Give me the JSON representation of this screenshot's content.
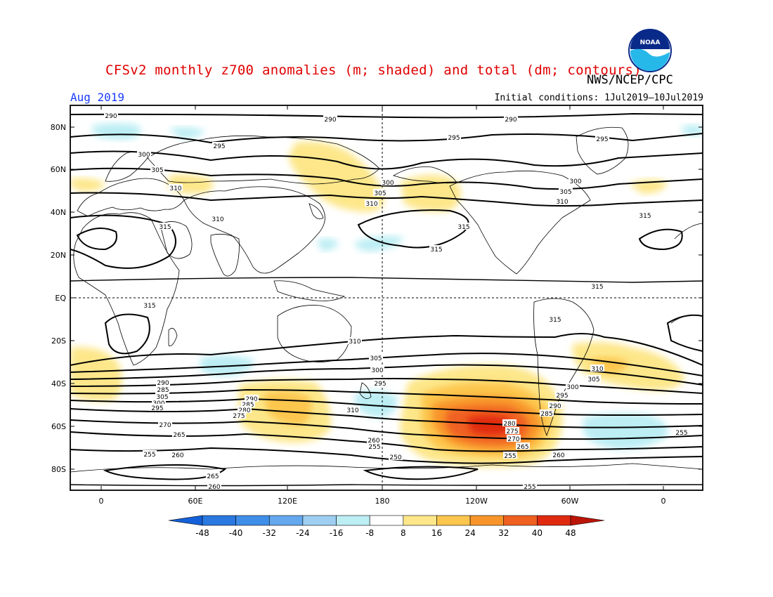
{
  "header": {
    "title": "CFSv2 monthly z700 anomalies (m; shaded) and total (dm; contours)",
    "org": "NWS/NCEP/CPC",
    "month": "Aug 2019",
    "initial_conditions": "Initial conditions: 1Jul2019–10Jul2019",
    "logo_text": "NOAA"
  },
  "axes": {
    "lat_labels": [
      "80N",
      "60N",
      "40N",
      "20N",
      "EQ",
      "20S",
      "40S",
      "60S",
      "80S"
    ],
    "lon_labels": [
      "0",
      "60E",
      "120E",
      "180",
      "120W",
      "60W",
      "0"
    ]
  },
  "colorbar": {
    "labels": [
      "-48",
      "-40",
      "-32",
      "-24",
      "-16",
      "-8",
      "8",
      "16",
      "24",
      "32",
      "40",
      "48"
    ],
    "colors": [
      "#1460d8",
      "#2a78e0",
      "#3f8ee8",
      "#64a8ee",
      "#9ecff2",
      "#bceef4",
      "#ffffff",
      "#fde78a",
      "#fdc64e",
      "#f8952a",
      "#f06020",
      "#e02a10",
      "#bb1408"
    ]
  },
  "contour_labels": [
    {
      "text": "290"
    },
    {
      "text": "290"
    },
    {
      "text": "290"
    },
    {
      "text": "295"
    },
    {
      "text": "295"
    },
    {
      "text": "295"
    },
    {
      "text": "300"
    },
    {
      "text": "305"
    },
    {
      "text": "310"
    },
    {
      "text": "310"
    },
    {
      "text": "300"
    },
    {
      "text": "305"
    },
    {
      "text": "310"
    },
    {
      "text": "300"
    },
    {
      "text": "305"
    },
    {
      "text": "310"
    },
    {
      "text": "315"
    },
    {
      "text": "315"
    },
    {
      "text": "315"
    },
    {
      "text": "315"
    },
    {
      "text": "315"
    },
    {
      "text": "315"
    },
    {
      "text": "315"
    },
    {
      "text": "310"
    },
    {
      "text": "305"
    },
    {
      "text": "300"
    },
    {
      "text": "295"
    },
    {
      "text": "290"
    },
    {
      "text": "285"
    },
    {
      "text": "310"
    },
    {
      "text": "305"
    },
    {
      "text": "300"
    },
    {
      "text": "295"
    },
    {
      "text": "290"
    },
    {
      "text": "285"
    },
    {
      "text": "280"
    },
    {
      "text": "275"
    },
    {
      "text": "270"
    },
    {
      "text": "265"
    },
    {
      "text": "260"
    },
    {
      "text": "255"
    },
    {
      "text": "260"
    },
    {
      "text": "255"
    },
    {
      "text": "250"
    },
    {
      "text": "265"
    },
    {
      "text": "260"
    },
    {
      "text": "255"
    },
    {
      "text": "255"
    },
    {
      "text": "310"
    },
    {
      "text": "305"
    },
    {
      "text": "300"
    },
    {
      "text": "295"
    },
    {
      "text": "290"
    },
    {
      "text": "285"
    },
    {
      "text": "280"
    },
    {
      "text": "275"
    },
    {
      "text": "270"
    },
    {
      "text": "265"
    },
    {
      "text": "260"
    },
    {
      "text": "255"
    }
  ]
}
